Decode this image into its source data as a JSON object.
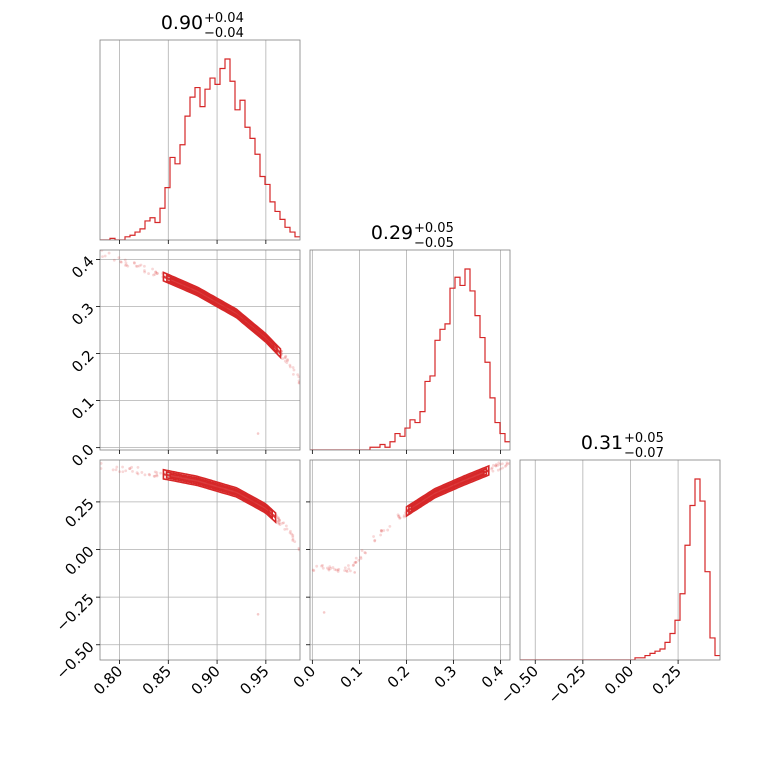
{
  "chart_data": {
    "type": "corner",
    "color": "#d62728",
    "grid": true,
    "parameters": [
      {
        "title": "0.90",
        "plus": "+0.04",
        "minus": "−0.04",
        "range": [
          0.78,
          0.985
        ],
        "ticks": [
          0.8,
          0.85,
          0.9,
          0.95
        ],
        "tick_labels": [
          "0.80",
          "0.85",
          "0.90",
          "0.95"
        ]
      },
      {
        "title": "0.29",
        "plus": "+0.05",
        "minus": "−0.05",
        "range": [
          -0.005,
          0.42
        ],
        "ticks": [
          0.0,
          0.1,
          0.2,
          0.3,
          0.4
        ],
        "tick_labels": [
          "0.0",
          "0.1",
          "0.2",
          "0.3",
          "0.4"
        ]
      },
      {
        "title": "0.31",
        "plus": "+0.05",
        "minus": "−0.07",
        "range": [
          -0.58,
          0.47
        ],
        "ticks": [
          -0.5,
          -0.25,
          0.0,
          0.25
        ],
        "tick_labels": [
          "−0.50",
          "−0.25",
          "0.00",
          "0.25"
        ]
      }
    ],
    "histograms": [
      {
        "param": 0,
        "edges_range": [
          0.78,
          0.985
        ],
        "counts": [
          0,
          0,
          1,
          0,
          0,
          2,
          3,
          5,
          7,
          12,
          14,
          11,
          20,
          33,
          52,
          48,
          60,
          78,
          90,
          96,
          84,
          95,
          102,
          98,
          108,
          114,
          100,
          82,
          88,
          71,
          64,
          54,
          40,
          35,
          24,
          18,
          13,
          8,
          5,
          2
        ]
      },
      {
        "param": 1,
        "edges_range": [
          -0.005,
          0.42
        ],
        "counts": [
          0,
          0,
          0,
          0,
          0,
          0,
          0,
          0,
          0,
          0,
          0,
          0,
          1,
          1,
          2,
          1,
          3,
          6,
          5,
          8,
          11,
          10,
          14,
          25,
          27,
          40,
          44,
          46,
          59,
          63,
          60,
          66,
          58,
          49,
          41,
          32,
          19,
          10,
          6,
          3
        ]
      },
      {
        "param": 2,
        "edges_range": [
          -0.58,
          0.47
        ],
        "counts": [
          0,
          0,
          0,
          0,
          0,
          0,
          0,
          0,
          0,
          0,
          0,
          0,
          0,
          0,
          0,
          0,
          0,
          0,
          0,
          0,
          0,
          0,
          0,
          1,
          1,
          2,
          3,
          4,
          5,
          8,
          12,
          18,
          30,
          52,
          70,
          82,
          72,
          40,
          10,
          2
        ]
      }
    ],
    "joint_panels": [
      {
        "x_param": 0,
        "y_param": 1,
        "ridge": [
          [
            0.78,
            0.415
          ],
          [
            0.84,
            0.368
          ],
          [
            0.88,
            0.332
          ],
          [
            0.92,
            0.285
          ],
          [
            0.95,
            0.233
          ],
          [
            0.97,
            0.19
          ],
          [
            0.985,
            0.14
          ]
        ],
        "contour_span": [
          0.845,
          0.965
        ],
        "contour_width": 0.009,
        "outliers": [
          [
            0.942,
            0.03
          ]
        ]
      },
      {
        "x_param": 0,
        "y_param": 2,
        "ridge": [
          [
            0.78,
            0.44
          ],
          [
            0.84,
            0.4
          ],
          [
            0.88,
            0.36
          ],
          [
            0.92,
            0.3
          ],
          [
            0.95,
            0.215
          ],
          [
            0.97,
            0.12
          ],
          [
            0.985,
            0.01
          ]
        ],
        "contour_span": [
          0.845,
          0.96
        ],
        "contour_width": 0.024,
        "outliers": [
          [
            0.942,
            -0.34
          ]
        ]
      },
      {
        "x_param": 1,
        "y_param": 2,
        "ridge": [
          [
            0.08,
            -0.1
          ],
          [
            0.14,
            0.08
          ],
          [
            0.2,
            0.2
          ],
          [
            0.26,
            0.295
          ],
          [
            0.32,
            0.36
          ],
          [
            0.36,
            0.4
          ],
          [
            0.41,
            0.45
          ]
        ],
        "contour_span": [
          0.2,
          0.375
        ],
        "contour_width": 0.024,
        "outliers": [
          [
            0.025,
            -0.33
          ],
          [
            0.09,
            -0.12
          ]
        ]
      }
    ]
  }
}
